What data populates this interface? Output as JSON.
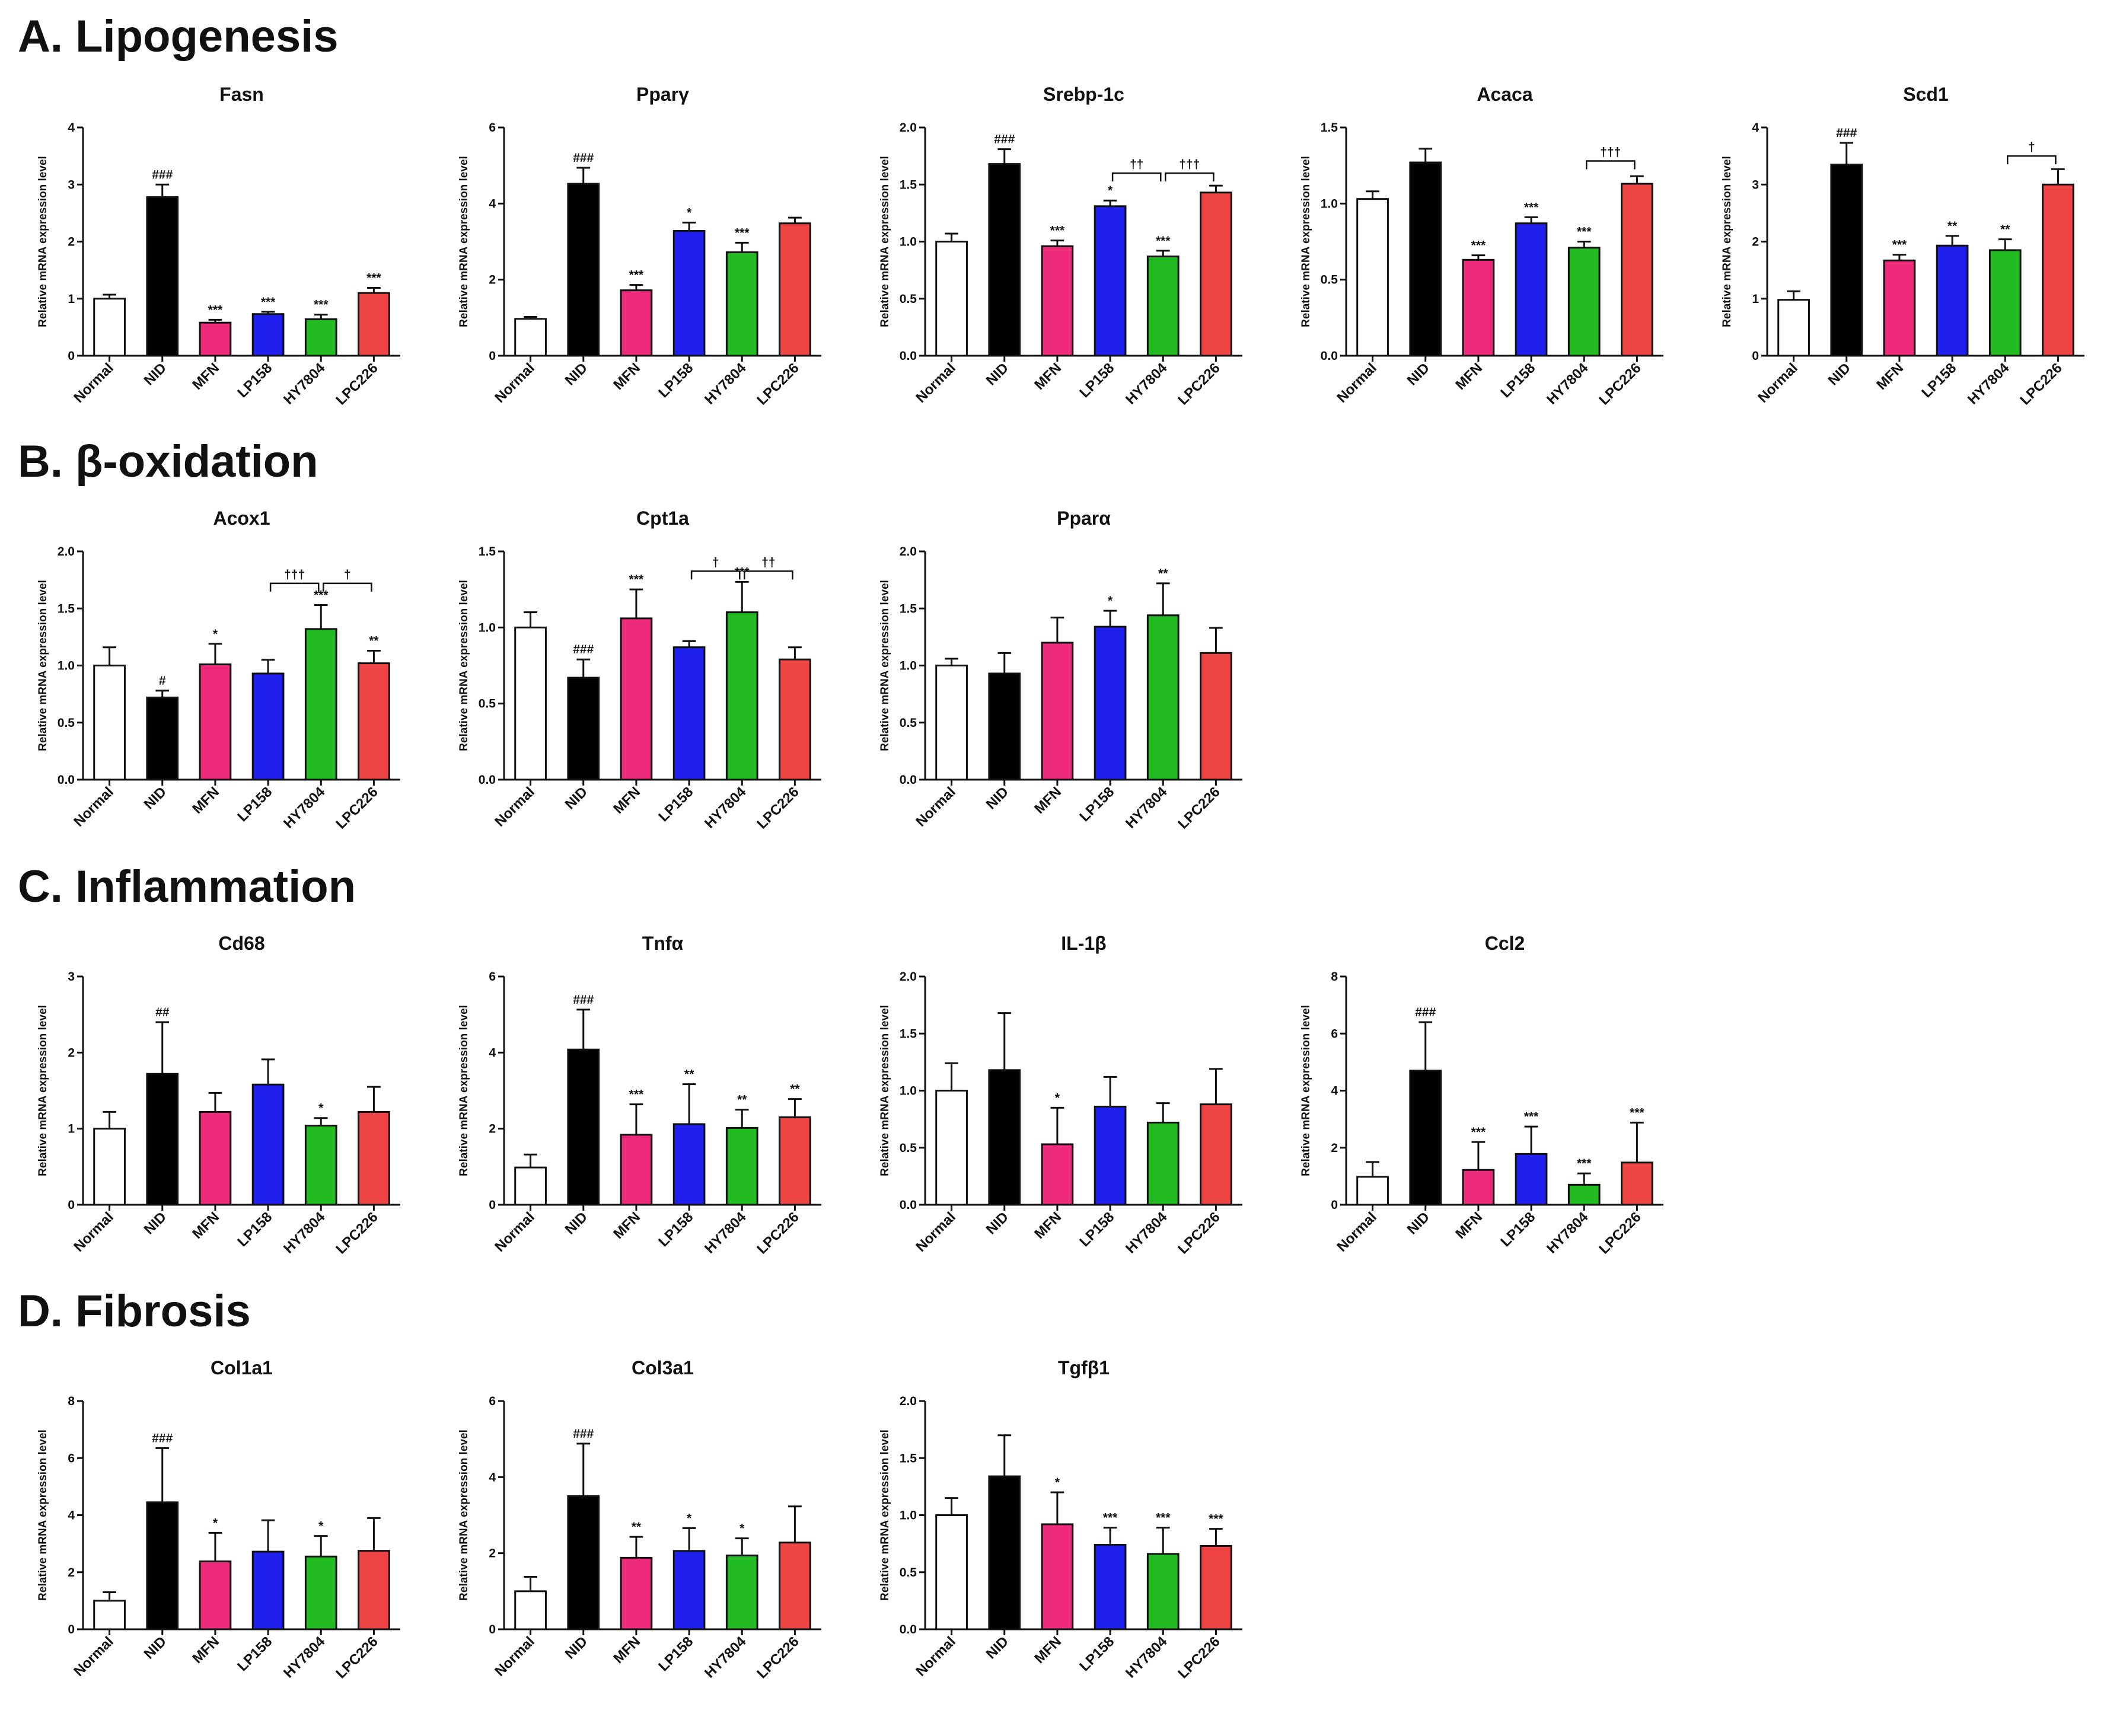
{
  "sections": [
    {
      "title": "A. Lipogenesis"
    },
    {
      "title": "B. β-oxidation"
    },
    {
      "title": "C. Inflammation"
    },
    {
      "title": "D. Fibrosis"
    }
  ],
  "colors": {
    "Normal": "#ffffff",
    "NID": "#000000",
    "MFN": "#ee2a7b",
    "LP158": "#1f1fee",
    "HY7804": "#22bb22",
    "LPC226": "#ef4444"
  },
  "chart_data": [
    {
      "type": "bar",
      "title": "Fasn",
      "ylabel": "Relative mRNA expression level",
      "categories": [
        "Normal",
        "NID",
        "MFN",
        "LP158",
        "HY7804",
        "LPC226"
      ],
      "values": [
        1.0,
        2.78,
        0.58,
        0.73,
        0.64,
        1.1
      ],
      "errors": [
        0.07,
        0.22,
        0.05,
        0.04,
        0.08,
        0.09
      ],
      "ylim": [
        0,
        4
      ],
      "yticks": [
        "0",
        "1",
        "2",
        "3",
        "4"
      ],
      "annotations": [
        "",
        "###",
        "***",
        "***",
        "***",
        "***"
      ],
      "brackets": []
    },
    {
      "type": "bar",
      "title": "Pparγ",
      "ylabel": "Relative mRNA expression level",
      "categories": [
        "Normal",
        "NID",
        "MFN",
        "LP158",
        "HY7804",
        "LPC226"
      ],
      "values": [
        0.97,
        4.52,
        1.72,
        3.28,
        2.72,
        3.48
      ],
      "errors": [
        0.05,
        0.42,
        0.14,
        0.22,
        0.25,
        0.15
      ],
      "ylim": [
        0,
        6
      ],
      "yticks": [
        "0",
        "2",
        "4",
        "6"
      ],
      "annotations": [
        "",
        "###",
        "***",
        "*",
        "***",
        ""
      ],
      "brackets": []
    },
    {
      "type": "bar",
      "title": "Srebp-1c",
      "ylabel": "Relative mRNA expression level",
      "categories": [
        "Normal",
        "NID",
        "MFN",
        "LP158",
        "HY7804",
        "LPC226"
      ],
      "values": [
        1.0,
        1.68,
        0.96,
        1.31,
        0.87,
        1.43
      ],
      "errors": [
        0.07,
        0.13,
        0.05,
        0.05,
        0.05,
        0.06
      ],
      "ylim": [
        0,
        2.0
      ],
      "yticks": [
        "0.0",
        "0.5",
        "1.0",
        "1.5",
        "2.0"
      ],
      "annotations": [
        "",
        "###",
        "***",
        "*",
        "***",
        ""
      ],
      "brackets": [
        {
          "from": 3,
          "to": 4,
          "label": "††",
          "y": 1.6
        },
        {
          "from": 4,
          "to": 5,
          "label": "†††",
          "y": 1.6
        }
      ]
    },
    {
      "type": "bar",
      "title": "Acaca",
      "ylabel": "Relative mRNA expression level",
      "categories": [
        "Normal",
        "NID",
        "MFN",
        "LP158",
        "HY7804",
        "LPC226"
      ],
      "values": [
        1.03,
        1.27,
        0.63,
        0.87,
        0.71,
        1.13
      ],
      "errors": [
        0.05,
        0.09,
        0.03,
        0.04,
        0.04,
        0.05
      ],
      "ylim": [
        0,
        1.5
      ],
      "yticks": [
        "0.0",
        "0.5",
        "1.0",
        "1.5"
      ],
      "annotations": [
        "",
        "",
        "***",
        "***",
        "***",
        ""
      ],
      "brackets": [
        {
          "from": 4,
          "to": 5,
          "label": "†††",
          "y": 1.28
        }
      ]
    },
    {
      "type": "bar",
      "title": "Scd1",
      "ylabel": "Relative mRNA expression level",
      "categories": [
        "Normal",
        "NID",
        "MFN",
        "LP158",
        "HY7804",
        "LPC226"
      ],
      "values": [
        0.98,
        3.35,
        1.67,
        1.93,
        1.85,
        3.0
      ],
      "errors": [
        0.15,
        0.38,
        0.1,
        0.17,
        0.19,
        0.27
      ],
      "ylim": [
        0,
        4
      ],
      "yticks": [
        "0",
        "1",
        "2",
        "3",
        "4"
      ],
      "annotations": [
        "",
        "###",
        "***",
        "**",
        "**",
        ""
      ],
      "brackets": [
        {
          "from": 4,
          "to": 5,
          "label": "†",
          "y": 3.5
        }
      ]
    },
    {
      "type": "bar",
      "title": "Acox1",
      "ylabel": "Relative mRNA expression level",
      "categories": [
        "Normal",
        "NID",
        "MFN",
        "LP158",
        "HY7804",
        "LPC226"
      ],
      "values": [
        1.0,
        0.72,
        1.01,
        0.93,
        1.32,
        1.02
      ],
      "errors": [
        0.16,
        0.06,
        0.18,
        0.12,
        0.21,
        0.11
      ],
      "ylim": [
        0,
        2.0
      ],
      "yticks": [
        "0.0",
        "0.5",
        "1.0",
        "1.5",
        "2.0"
      ],
      "annotations": [
        "",
        "#",
        "*",
        "",
        "***",
        "**"
      ],
      "brackets": [
        {
          "from": 3,
          "to": 4,
          "label": "†††",
          "y": 1.72
        },
        {
          "from": 4,
          "to": 5,
          "label": "†",
          "y": 1.72
        }
      ]
    },
    {
      "type": "bar",
      "title": "Cpt1a",
      "ylabel": "Relative mRNA expression level",
      "categories": [
        "Normal",
        "NID",
        "MFN",
        "LP158",
        "HY7804",
        "LPC226"
      ],
      "values": [
        1.0,
        0.67,
        1.06,
        0.87,
        1.1,
        0.79
      ],
      "errors": [
        0.1,
        0.12,
        0.19,
        0.04,
        0.2,
        0.08
      ],
      "ylim": [
        0,
        1.5
      ],
      "yticks": [
        "0.0",
        "0.5",
        "1.0",
        "1.5"
      ],
      "annotations": [
        "",
        "###",
        "***",
        "",
        "***",
        ""
      ],
      "brackets": [
        {
          "from": 3,
          "to": 4,
          "label": "†",
          "y": 1.37
        },
        {
          "from": 4,
          "to": 5,
          "label": "††",
          "y": 1.37
        }
      ]
    },
    {
      "type": "bar",
      "title": "Pparα",
      "ylabel": "Relative mRNA expression level",
      "categories": [
        "Normal",
        "NID",
        "MFN",
        "LP158",
        "HY7804",
        "LPC226"
      ],
      "values": [
        1.0,
        0.93,
        1.2,
        1.34,
        1.44,
        1.11
      ],
      "errors": [
        0.06,
        0.18,
        0.22,
        0.14,
        0.28,
        0.22
      ],
      "ylim": [
        0,
        2.0
      ],
      "yticks": [
        "0.0",
        "0.5",
        "1.0",
        "1.5",
        "2.0"
      ],
      "annotations": [
        "",
        "",
        "",
        "*",
        "**",
        ""
      ],
      "brackets": []
    },
    {
      "type": "bar",
      "title": "Cd68",
      "ylabel": "Relative mRNA expression level",
      "categories": [
        "Normal",
        "NID",
        "MFN",
        "LP158",
        "HY7804",
        "LPC226"
      ],
      "values": [
        1.0,
        1.72,
        1.22,
        1.58,
        1.04,
        1.22
      ],
      "errors": [
        0.22,
        0.68,
        0.25,
        0.33,
        0.1,
        0.33
      ],
      "ylim": [
        0,
        3
      ],
      "yticks": [
        "0",
        "1",
        "2",
        "3"
      ],
      "annotations": [
        "",
        "##",
        "",
        "",
        "*",
        ""
      ],
      "brackets": []
    },
    {
      "type": "bar",
      "title": "Tnfα",
      "ylabel": "Relative mRNA expression level",
      "categories": [
        "Normal",
        "NID",
        "MFN",
        "LP158",
        "HY7804",
        "LPC226"
      ],
      "values": [
        0.98,
        4.08,
        1.84,
        2.12,
        2.02,
        2.3
      ],
      "errors": [
        0.34,
        1.05,
        0.8,
        1.05,
        0.48,
        0.48
      ],
      "ylim": [
        0,
        6
      ],
      "yticks": [
        "0",
        "2",
        "4",
        "6"
      ],
      "annotations": [
        "",
        "###",
        "***",
        "**",
        "**",
        "**"
      ],
      "brackets": []
    },
    {
      "type": "bar",
      "title": "IL-1β",
      "ylabel": "Relative mRNA expression level",
      "categories": [
        "Normal",
        "NID",
        "MFN",
        "LP158",
        "HY7804",
        "LPC226"
      ],
      "values": [
        1.0,
        1.18,
        0.53,
        0.86,
        0.72,
        0.88
      ],
      "errors": [
        0.24,
        0.5,
        0.32,
        0.26,
        0.17,
        0.31
      ],
      "ylim": [
        0,
        2.0
      ],
      "yticks": [
        "0.0",
        "0.5",
        "1.0",
        "1.5",
        "2.0"
      ],
      "annotations": [
        "",
        "",
        "*",
        "",
        "",
        ""
      ],
      "brackets": []
    },
    {
      "type": "bar",
      "title": "Ccl2",
      "ylabel": "Relative mRNA expression level",
      "categories": [
        "Normal",
        "NID",
        "MFN",
        "LP158",
        "HY7804",
        "LPC226"
      ],
      "values": [
        0.98,
        4.7,
        1.22,
        1.78,
        0.7,
        1.48
      ],
      "errors": [
        0.52,
        1.7,
        0.98,
        0.96,
        0.4,
        1.4
      ],
      "ylim": [
        0,
        8
      ],
      "yticks": [
        "0",
        "2",
        "4",
        "6",
        "8"
      ],
      "annotations": [
        "",
        "###",
        "***",
        "***",
        "***",
        "***"
      ],
      "brackets": []
    },
    {
      "type": "bar",
      "title": "Col1a1",
      "ylabel": "Relative mRNA expression level",
      "categories": [
        "Normal",
        "NID",
        "MFN",
        "LP158",
        "HY7804",
        "LPC226"
      ],
      "values": [
        1.0,
        4.45,
        2.38,
        2.72,
        2.55,
        2.75
      ],
      "errors": [
        0.3,
        1.9,
        1.0,
        1.1,
        0.72,
        1.15
      ],
      "ylim": [
        0,
        8
      ],
      "yticks": [
        "0",
        "2",
        "4",
        "6",
        "8"
      ],
      "annotations": [
        "",
        "###",
        "*",
        "",
        "*",
        ""
      ],
      "brackets": []
    },
    {
      "type": "bar",
      "title": "Col3a1",
      "ylabel": "Relative mRNA expression level",
      "categories": [
        "Normal",
        "NID",
        "MFN",
        "LP158",
        "HY7804",
        "LPC226"
      ],
      "values": [
        1.0,
        3.5,
        1.88,
        2.06,
        1.94,
        2.28
      ],
      "errors": [
        0.38,
        1.38,
        0.55,
        0.6,
        0.45,
        0.95
      ],
      "ylim": [
        0,
        6
      ],
      "yticks": [
        "0",
        "2",
        "4",
        "6"
      ],
      "annotations": [
        "",
        "###",
        "**",
        "*",
        "*",
        ""
      ],
      "brackets": []
    },
    {
      "type": "bar",
      "title": "Tgfβ1",
      "ylabel": "Relative mRNA expression level",
      "categories": [
        "Normal",
        "NID",
        "MFN",
        "LP158",
        "HY7804",
        "LPC226"
      ],
      "values": [
        1.0,
        1.34,
        0.92,
        0.74,
        0.66,
        0.73
      ],
      "errors": [
        0.15,
        0.36,
        0.28,
        0.15,
        0.23,
        0.15
      ],
      "ylim": [
        0,
        2.0
      ],
      "yticks": [
        "0.0",
        "0.5",
        "1.0",
        "1.5",
        "2.0"
      ],
      "annotations": [
        "",
        "",
        "*",
        "***",
        "***",
        "***"
      ],
      "brackets": []
    }
  ]
}
